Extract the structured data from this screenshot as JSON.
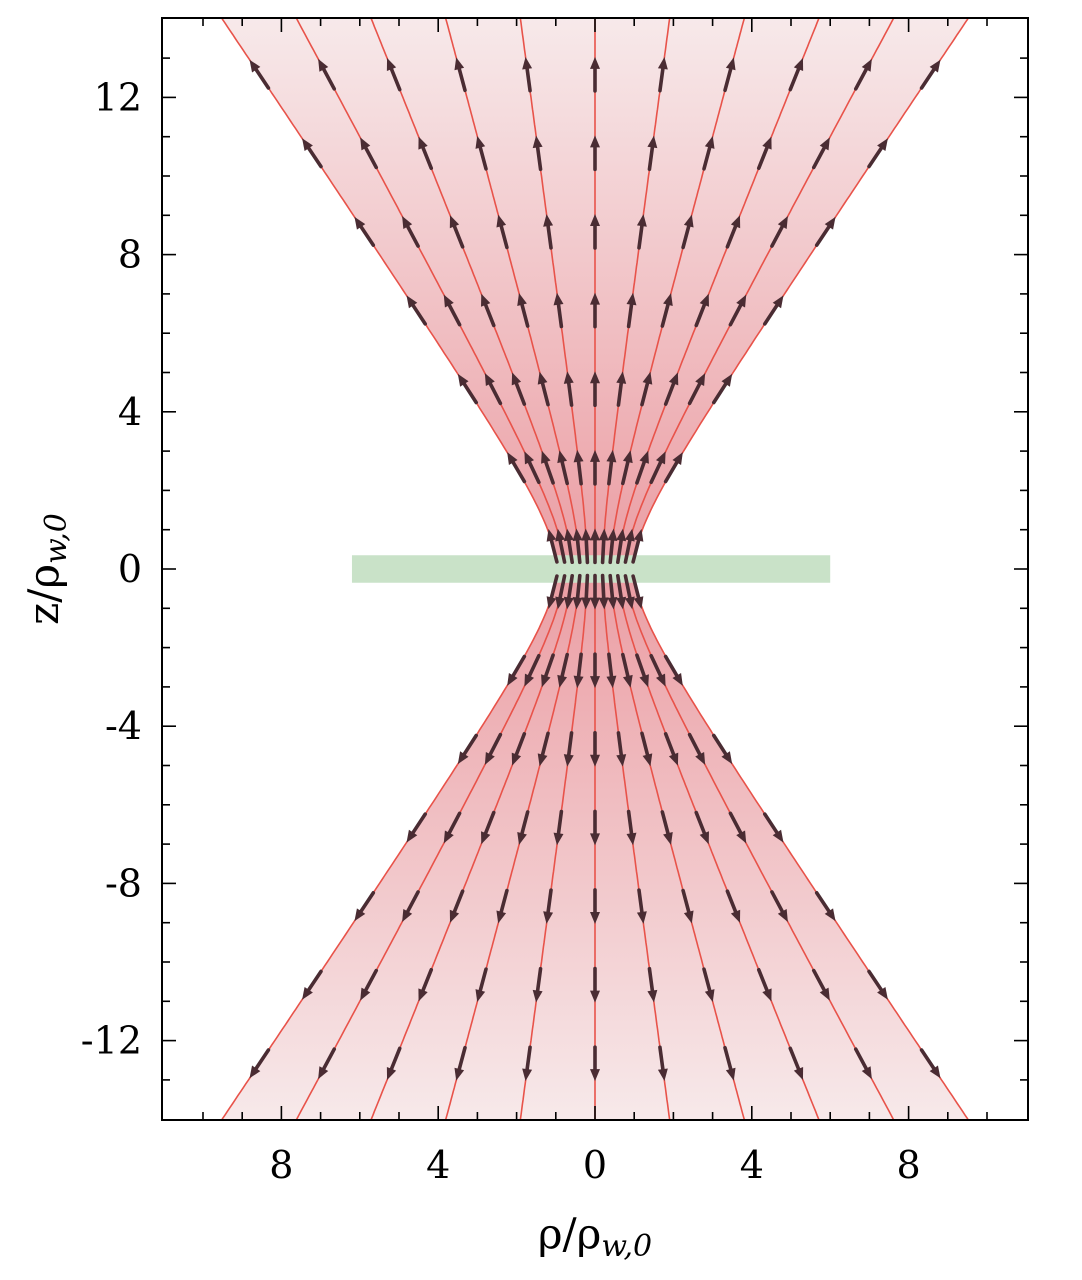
{
  "chart_data": {
    "type": "vector-field",
    "xlabel": {
      "main": "ρ/ρ",
      "sub": "w,0"
    },
    "ylabel": {
      "main": "z/ρ",
      "sub": "w,0"
    },
    "xlim": [
      -11,
      11
    ],
    "ylim": [
      -14,
      14
    ],
    "x_ticks": [
      {
        "value": -8,
        "label": "8"
      },
      {
        "value": -4,
        "label": "4"
      },
      {
        "value": 0,
        "label": "0"
      },
      {
        "value": 4,
        "label": "4"
      },
      {
        "value": 8,
        "label": "8"
      }
    ],
    "y_ticks": [
      {
        "value": 12,
        "label": "12"
      },
      {
        "value": 8,
        "label": "8"
      },
      {
        "value": 4,
        "label": "4"
      },
      {
        "value": 0,
        "label": "0"
      },
      {
        "value": -4,
        "label": "-4"
      },
      {
        "value": -8,
        "label": "-8"
      },
      {
        "value": -12,
        "label": "-12"
      }
    ],
    "beam": {
      "waist_radius": 1.0,
      "rayleigh_range": 1.48,
      "z_max": 14,
      "line_count": 11,
      "arrow_rows": [
        0.6,
        2.6,
        4.6,
        6.6,
        8.6,
        10.6,
        12.6
      ]
    },
    "plate": {
      "x_range": [
        -6.2,
        6.0
      ],
      "z_range": [
        -0.35,
        0.35
      ]
    },
    "colors": {
      "beam_fill": "#f2c7cb",
      "field_line": "#e8534a",
      "arrow": "#4a2c33",
      "plate": "#c9e2c8",
      "frame": "#000000"
    },
    "grid": false
  }
}
